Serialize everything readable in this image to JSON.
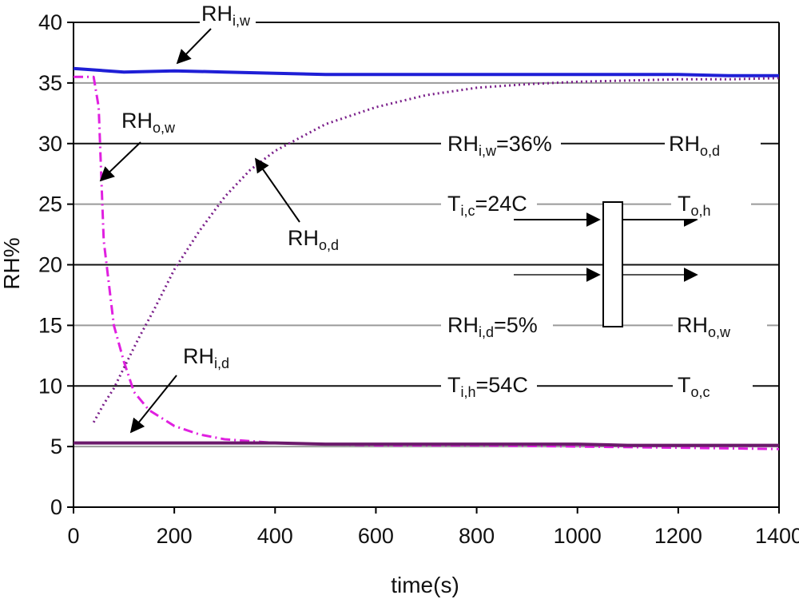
{
  "chart_data": {
    "type": "line",
    "xlabel": "time(s)",
    "ylabel": "RH%",
    "xlim": [
      0,
      1400
    ],
    "ylim": [
      0,
      40
    ],
    "x_ticks": [
      "0",
      "200",
      "400",
      "600",
      "800",
      "1000",
      "1200",
      "1400"
    ],
    "y_ticks": [
      "0",
      "5",
      "10",
      "15",
      "20",
      "25",
      "30",
      "35",
      "40"
    ],
    "grid": "horizontal",
    "series": [
      {
        "name": "RHi,w",
        "color": "#1f1fd6",
        "style": "solid",
        "x": [
          0,
          100,
          200,
          300,
          400,
          500,
          600,
          700,
          800,
          900,
          1000,
          1100,
          1200,
          1300,
          1400
        ],
        "y": [
          36.2,
          35.9,
          36.0,
          35.9,
          35.8,
          35.7,
          35.7,
          35.7,
          35.7,
          35.7,
          35.7,
          35.7,
          35.7,
          35.6,
          35.6
        ]
      },
      {
        "name": "RHo,w",
        "color": "#e020e0",
        "style": "dash-dot",
        "x": [
          0,
          40,
          50,
          60,
          80,
          100,
          120,
          150,
          200,
          250,
          300,
          400,
          500,
          600,
          800,
          1000,
          1200,
          1400
        ],
        "y": [
          35.5,
          35.5,
          33,
          22,
          15,
          12,
          9.5,
          8,
          6.7,
          6,
          5.6,
          5.3,
          5.2,
          5.1,
          5.1,
          5.0,
          4.9,
          4.8
        ]
      },
      {
        "name": "RHo,d",
        "color": "#7a1f8a",
        "style": "dotted",
        "x": [
          40,
          60,
          80,
          100,
          130,
          160,
          200,
          250,
          300,
          350,
          400,
          500,
          600,
          700,
          800,
          900,
          1000,
          1100,
          1200,
          1300,
          1400
        ],
        "y": [
          7,
          8.5,
          9.8,
          11.5,
          14,
          16.3,
          19.6,
          22.8,
          25.6,
          27.8,
          29.4,
          31.6,
          33,
          34,
          34.6,
          34.9,
          35.1,
          35.2,
          35.3,
          35.3,
          35.4
        ]
      },
      {
        "name": "RHi,d",
        "color": "#6b1a6b",
        "style": "solid",
        "x": [
          0,
          100,
          200,
          300,
          400,
          500,
          600,
          700,
          800,
          900,
          1000,
          1100,
          1200,
          1300,
          1400
        ],
        "y": [
          5.3,
          5.3,
          5.3,
          5.3,
          5.3,
          5.2,
          5.2,
          5.2,
          5.2,
          5.2,
          5.2,
          5.1,
          5.1,
          5.1,
          5.1
        ]
      }
    ],
    "series_labels": [
      {
        "text": "RH",
        "sub": "i,w"
      },
      {
        "text": "RH",
        "sub": "o,w"
      },
      {
        "text": "RH",
        "sub": "o,d"
      },
      {
        "text": "RH",
        "sub": "i,d"
      }
    ],
    "annotations": [
      {
        "text": "RH",
        "sub": "i,w",
        "suffix": "=36%"
      },
      {
        "text": "T",
        "sub": "i,c",
        "suffix": "=24C"
      },
      {
        "text": "RH",
        "sub": "i,d",
        "suffix": "=5%"
      },
      {
        "text": "T",
        "sub": "i,h",
        "suffix": "=54C"
      },
      {
        "text": "RH",
        "sub": "o,d",
        "suffix": ""
      },
      {
        "text": "T",
        "sub": "o,h",
        "suffix": ""
      },
      {
        "text": "RH",
        "sub": "o,w",
        "suffix": ""
      },
      {
        "text": "T",
        "sub": "o,c",
        "suffix": ""
      }
    ]
  }
}
